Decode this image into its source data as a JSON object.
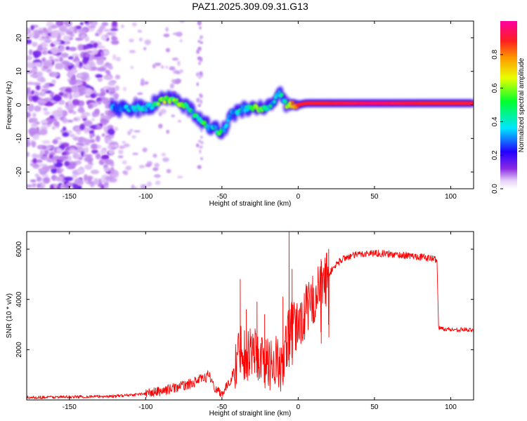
{
  "figure": {
    "title": "PAZ1.2025.309.09.31.G13"
  },
  "chart_data": [
    {
      "type": "heatmap",
      "title": "PAZ1.2025.309.09.31.G13",
      "xlabel": "Height of straight line (km)",
      "ylabel": "Frequency (Hz)",
      "xlim": [
        -178,
        115
      ],
      "ylim": [
        -25,
        25
      ],
      "xticks": [
        -150,
        -100,
        -50,
        0,
        50,
        100
      ],
      "yticks": [
        -20,
        -10,
        0,
        10,
        20
      ],
      "colorbar": {
        "label": "Normalized spectral amplitude",
        "range": [
          0,
          1
        ],
        "ticks": [
          0.0,
          0.2,
          0.4,
          0.6,
          0.8
        ],
        "tick_labels": [
          "0.0",
          "0.2",
          "0.4",
          "0.6",
          "0.8"
        ]
      },
      "ridge": {
        "description": "dominant frequency track vs height",
        "x": [
          -122,
          -110,
          -100,
          -95,
          -90,
          -82,
          -75,
          -70,
          -66,
          -62,
          -58,
          -55,
          -52,
          -50,
          -48,
          -46,
          -44,
          -40,
          -36,
          -32,
          -28,
          -24,
          -20,
          -16,
          -13,
          -11,
          -9,
          -7,
          -4,
          0,
          5,
          20,
          50,
          80,
          90,
          100,
          115
        ],
        "frequency": [
          -1,
          -1,
          -1,
          0,
          1.5,
          1.5,
          0,
          -2,
          -4,
          -5,
          -7,
          -7,
          -8,
          -8,
          -7,
          -5,
          -3,
          -2,
          -1,
          -1,
          -1,
          -1,
          -0.5,
          1,
          3.5,
          3,
          0.5,
          -0.5,
          0,
          0,
          0.5,
          0.5,
          0.5,
          0.5,
          0.5,
          0.5,
          0.5
        ],
        "amplitude": [
          0.3,
          0.3,
          0.4,
          0.4,
          0.6,
          0.55,
          0.5,
          0.4,
          0.45,
          0.5,
          0.35,
          0.4,
          0.5,
          0.45,
          0.35,
          0.3,
          0.3,
          0.4,
          0.4,
          0.45,
          0.5,
          0.55,
          0.45,
          0.35,
          0.3,
          0.35,
          0.45,
          0.6,
          0.7,
          0.9,
          0.9,
          0.9,
          0.95,
          0.9,
          0.9,
          0.9,
          0.9
        ]
      }
    },
    {
      "type": "line",
      "xlabel": "Height of straight line (km)",
      "ylabel": "SNR (10 * v/v)",
      "xlim": [
        -178,
        115
      ],
      "ylim": [
        0,
        6700
      ],
      "xticks": [
        -150,
        -100,
        -50,
        0,
        50,
        100
      ],
      "yticks": [
        2000,
        4000,
        6000
      ],
      "series": [
        {
          "name": "SNR",
          "color": "#ff0000",
          "x": [
            -178,
            -150,
            -120,
            -100,
            -90,
            -80,
            -70,
            -65,
            -60,
            -55,
            -50,
            -45,
            -40,
            -38,
            -35,
            -30,
            -25,
            -20,
            -15,
            -10,
            -7,
            -5,
            -2,
            0,
            5,
            10,
            15,
            20,
            25,
            30,
            40,
            50,
            60,
            70,
            80,
            90,
            91,
            92,
            93,
            100,
            110,
            115
          ],
          "values": [
            100,
            120,
            150,
            250,
            350,
            500,
            650,
            800,
            900,
            500,
            250,
            700,
            1500,
            2200,
            1800,
            2000,
            1700,
            1400,
            1600,
            1200,
            2500,
            2800,
            2800,
            3000,
            3500,
            4000,
            4500,
            5000,
            5400,
            5650,
            5800,
            5850,
            5800,
            5750,
            5700,
            5600,
            5600,
            2900,
            2850,
            2800,
            2800,
            2750
          ],
          "spikes": [
            {
              "x": -38,
              "value": 4800
            },
            {
              "x": -34,
              "value": 3600
            },
            {
              "x": -27,
              "value": 3900
            },
            {
              "x": -22,
              "value": 3400
            },
            {
              "x": -10,
              "value": 4100
            },
            {
              "x": -6,
              "value": 6700
            },
            {
              "x": -4,
              "value": 5200
            },
            {
              "x": 15,
              "value": 5600
            },
            {
              "x": 20,
              "value": 6000
            }
          ]
        }
      ]
    }
  ]
}
